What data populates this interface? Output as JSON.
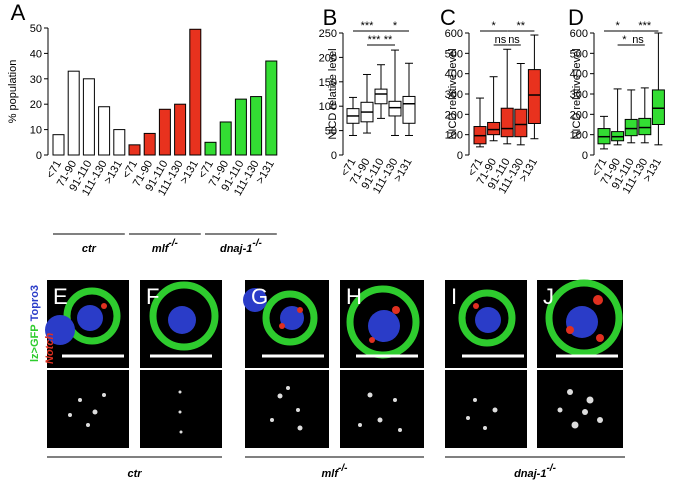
{
  "chart_data": [
    {
      "type": "bar",
      "panel": "A",
      "ylabel": "% population",
      "categories": [
        "<71",
        "71-90",
        "91-110",
        "111-130",
        ">131"
      ],
      "ylim": [
        0,
        50
      ],
      "yticks": [
        0,
        10,
        20,
        30,
        40,
        50
      ],
      "series": [
        {
          "name": "ctr",
          "color": "#ffffff",
          "values": [
            8,
            33,
            30,
            19,
            10
          ]
        },
        {
          "name": "mlf",
          "superscript": "-/-",
          "color": "#e8321e",
          "values": [
            4,
            8.5,
            18,
            20,
            49.5
          ]
        },
        {
          "name": "dnaj-1",
          "superscript": "-/-",
          "color": "#33dd33",
          "values": [
            5,
            13,
            22,
            23,
            37
          ]
        }
      ]
    },
    {
      "type": "box",
      "panel": "B",
      "ylabel": "NICD relative level",
      "color": "#ffffff",
      "categories": [
        "<71",
        "71-90",
        "91-110",
        "111-130",
        ">131"
      ],
      "ylim": [
        0,
        250
      ],
      "yticks": [
        0,
        50,
        100,
        150,
        200,
        250
      ],
      "boxes": [
        {
          "min": 40,
          "q1": 65,
          "median": 80,
          "q3": 95,
          "max": 118
        },
        {
          "min": 45,
          "q1": 68,
          "median": 88,
          "q3": 108,
          "max": 165
        },
        {
          "min": 75,
          "q1": 105,
          "median": 125,
          "q3": 135,
          "max": 185
        },
        {
          "min": 40,
          "q1": 80,
          "median": 97,
          "q3": 110,
          "max": 215
        },
        {
          "min": 40,
          "q1": 65,
          "median": 105,
          "q3": 120,
          "max": 188
        }
      ],
      "significance": [
        {
          "label": "***",
          "between": [
            0,
            2
          ]
        },
        {
          "label": "*",
          "between": [
            2,
            4
          ]
        },
        {
          "label": "***",
          "between": [
            1,
            2
          ]
        },
        {
          "label": "**",
          "between": [
            2,
            3
          ]
        }
      ]
    },
    {
      "type": "box",
      "panel": "C",
      "ylabel": "NICD relative level",
      "color": "#e8321e",
      "categories": [
        "<71",
        "71-90",
        "91-110",
        "111-130",
        ">131"
      ],
      "ylim": [
        0,
        600
      ],
      "yticks": [
        0,
        100,
        200,
        300,
        400,
        500,
        600
      ],
      "boxes": [
        {
          "min": 40,
          "q1": 55,
          "median": 95,
          "q3": 140,
          "max": 280
        },
        {
          "min": 70,
          "q1": 100,
          "median": 125,
          "q3": 160,
          "max": 385
        },
        {
          "min": 55,
          "q1": 90,
          "median": 130,
          "q3": 230,
          "max": 520
        },
        {
          "min": 50,
          "q1": 90,
          "median": 150,
          "q3": 225,
          "max": 450
        },
        {
          "min": 80,
          "q1": 155,
          "median": 295,
          "q3": 420,
          "max": 590
        }
      ],
      "significance": [
        {
          "label": "*",
          "between": [
            0,
            2
          ]
        },
        {
          "label": "**",
          "between": [
            2,
            4
          ]
        },
        {
          "label": "ns",
          "between": [
            1,
            2
          ]
        },
        {
          "label": "ns",
          "between": [
            2,
            3
          ]
        }
      ]
    },
    {
      "type": "box",
      "panel": "D",
      "ylabel": "NICD relative level",
      "color": "#33dd33",
      "categories": [
        "<71",
        "71-90",
        "91-110",
        "111-130",
        ">131"
      ],
      "ylim": [
        0,
        600
      ],
      "yticks": [
        0,
        100,
        200,
        300,
        400,
        500,
        600
      ],
      "boxes": [
        {
          "min": 30,
          "q1": 55,
          "median": 90,
          "q3": 130,
          "max": 190
        },
        {
          "min": 50,
          "q1": 70,
          "median": 90,
          "q3": 115,
          "max": 325
        },
        {
          "min": 60,
          "q1": 95,
          "median": 130,
          "q3": 175,
          "max": 320
        },
        {
          "min": 60,
          "q1": 100,
          "median": 135,
          "q3": 180,
          "max": 330
        },
        {
          "min": 50,
          "q1": 150,
          "median": 230,
          "q3": 320,
          "max": 600
        }
      ],
      "significance": [
        {
          "label": "*",
          "between": [
            0,
            2
          ]
        },
        {
          "label": "***",
          "between": [
            2,
            4
          ]
        },
        {
          "label": "*",
          "between": [
            1,
            2
          ]
        },
        {
          "label": "ns",
          "between": [
            2,
            3
          ]
        }
      ]
    }
  ],
  "micrographs": {
    "stain_labels": [
      "lz>GFP",
      "Topro3",
      "Notch"
    ],
    "panels": [
      "E",
      "F",
      "G",
      "H",
      "I",
      "J"
    ],
    "groups": [
      {
        "name": "ctr"
      },
      {
        "name": "mlf",
        "superscript": "-/-"
      },
      {
        "name": "dnaj-1",
        "superscript": "-/-"
      }
    ]
  }
}
